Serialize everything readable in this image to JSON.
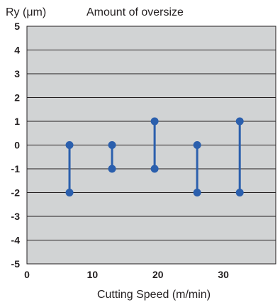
{
  "chart_data": {
    "type": "range",
    "title": "Amount of oversize",
    "ylabel": "Ry (μm)",
    "xlabel": "Cutting Speed (m/min)",
    "xlim": [
      0,
      38
    ],
    "ylim": [
      -5,
      5
    ],
    "x_ticks": [
      0,
      10,
      20,
      30
    ],
    "y_ticks": [
      5,
      4,
      3,
      2,
      1,
      0,
      -1,
      -2,
      -3,
      -4,
      -5
    ],
    "grid": "horizontal",
    "legend": "none",
    "series": [
      {
        "color": "#2b5fad",
        "points": [
          {
            "x": 6.5,
            "low": -2,
            "high": 0
          },
          {
            "x": 13,
            "low": -1,
            "high": 0
          },
          {
            "x": 19.5,
            "low": -1,
            "high": 1
          },
          {
            "x": 26,
            "low": -2,
            "high": 0
          },
          {
            "x": 32.5,
            "low": -2,
            "high": 1
          }
        ]
      }
    ]
  }
}
